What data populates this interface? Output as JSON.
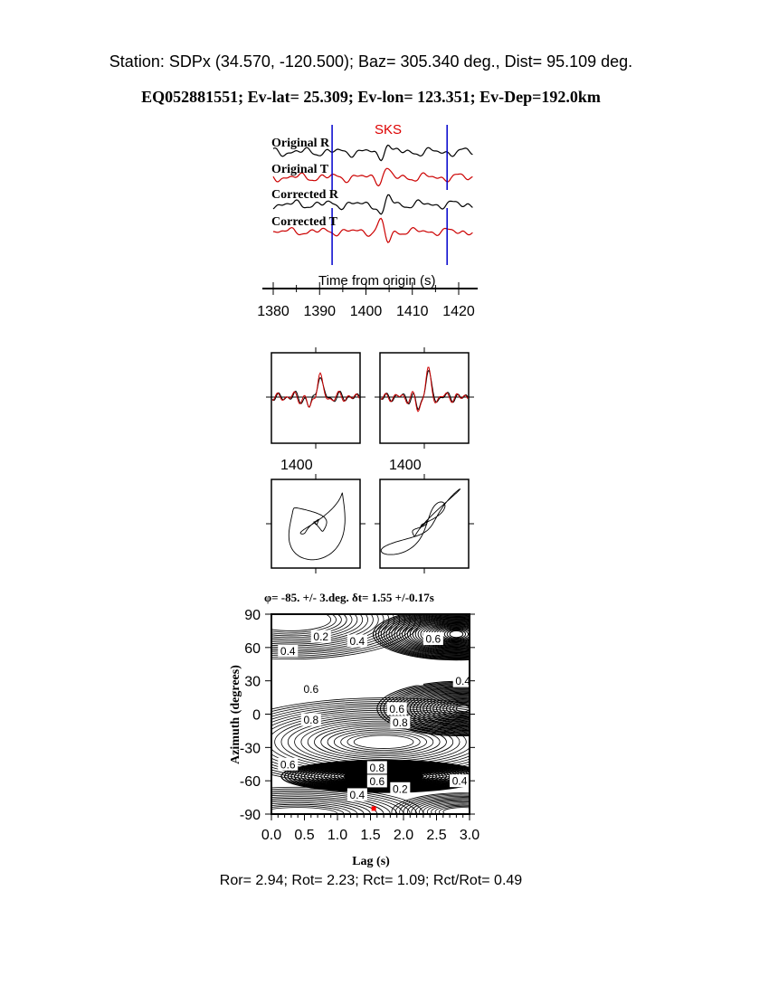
{
  "header": {
    "station_line": "Station: SDPx (34.570, -120.500); Baz=  305.340 deg., Dist=   95.109 deg.",
    "event_line": "EQ052881551; Ev-lat=  25.309; Ev-lon= 123.351; Ev-Dep=192.0km"
  },
  "footer": {
    "ratios": "Ror= 2.94; Rot= 2.23; Rct= 1.09; Rct/Rot= 0.49"
  },
  "colors": {
    "radial": "#000000",
    "transverse": "#cc0000",
    "window": "#0000cc",
    "phase_label": "#dd0000",
    "best_fit": "#ff0000"
  },
  "chart_data": [
    {
      "type": "line",
      "phase_label": "SKS",
      "trace_labels": [
        "Original R",
        "Original T",
        "Corrected R",
        "Corrected T"
      ],
      "xlabel": "Time from origin (s)",
      "xticks": [
        "1380",
        "1390",
        "1400",
        "1410",
        "1420"
      ],
      "xlim": [
        1380,
        1423
      ],
      "window": [
        1392.7,
        1417.5
      ]
    },
    {
      "type": "line",
      "xticks": [
        "1400"
      ],
      "note": ""
    },
    {
      "type": "line",
      "xticks": [
        "1400"
      ]
    },
    {
      "type": "scatter"
    },
    {
      "type": "scatter"
    },
    {
      "type": "heatmap",
      "title": "φ= -85. +/- 3.deg. δt= 1.55 +/-0.17s",
      "xlabel": "Lag (s)",
      "ylabel": "Azimuth (degrees)",
      "xlim": [
        0,
        3
      ],
      "ylim": [
        -90,
        90
      ],
      "xticks": [
        "0.0",
        "0.5",
        "1.0",
        "1.5",
        "2.0",
        "2.5",
        "3.0"
      ],
      "yticks": [
        "90",
        "60",
        "30",
        "0",
        "-30",
        "-60",
        "-90"
      ],
      "contour_labels": [
        {
          "text": "0.2",
          "x": 0.75,
          "y": 70
        },
        {
          "text": "0.4",
          "x": 1.3,
          "y": 66
        },
        {
          "text": "0.6",
          "x": 2.45,
          "y": 68
        },
        {
          "text": "0.4",
          "x": 0.25,
          "y": 57
        },
        {
          "text": "0.4",
          "x": 2.9,
          "y": 30
        },
        {
          "text": "0.6",
          "x": 0.6,
          "y": 23
        },
        {
          "text": "0.6",
          "x": 1.9,
          "y": 5
        },
        {
          "text": "0.8",
          "x": 1.95,
          "y": -3
        },
        {
          "text": "0.8",
          "x": 0.6,
          "y": -5
        },
        {
          "text": "0.6",
          "x": 0.25,
          "y": -45
        },
        {
          "text": "0.8",
          "x": 1.6,
          "y": -48
        },
        {
          "text": "0.6",
          "x": 1.6,
          "y": -53
        },
        {
          "text": "0.4",
          "x": 1.3,
          "y": -59
        },
        {
          "text": "0.2",
          "x": 1.95,
          "y": -67
        },
        {
          "text": "0.4",
          "x": 2.85,
          "y": -60
        }
      ],
      "best_fit": {
        "lag": 1.55,
        "azimuth": -85
      }
    }
  ]
}
